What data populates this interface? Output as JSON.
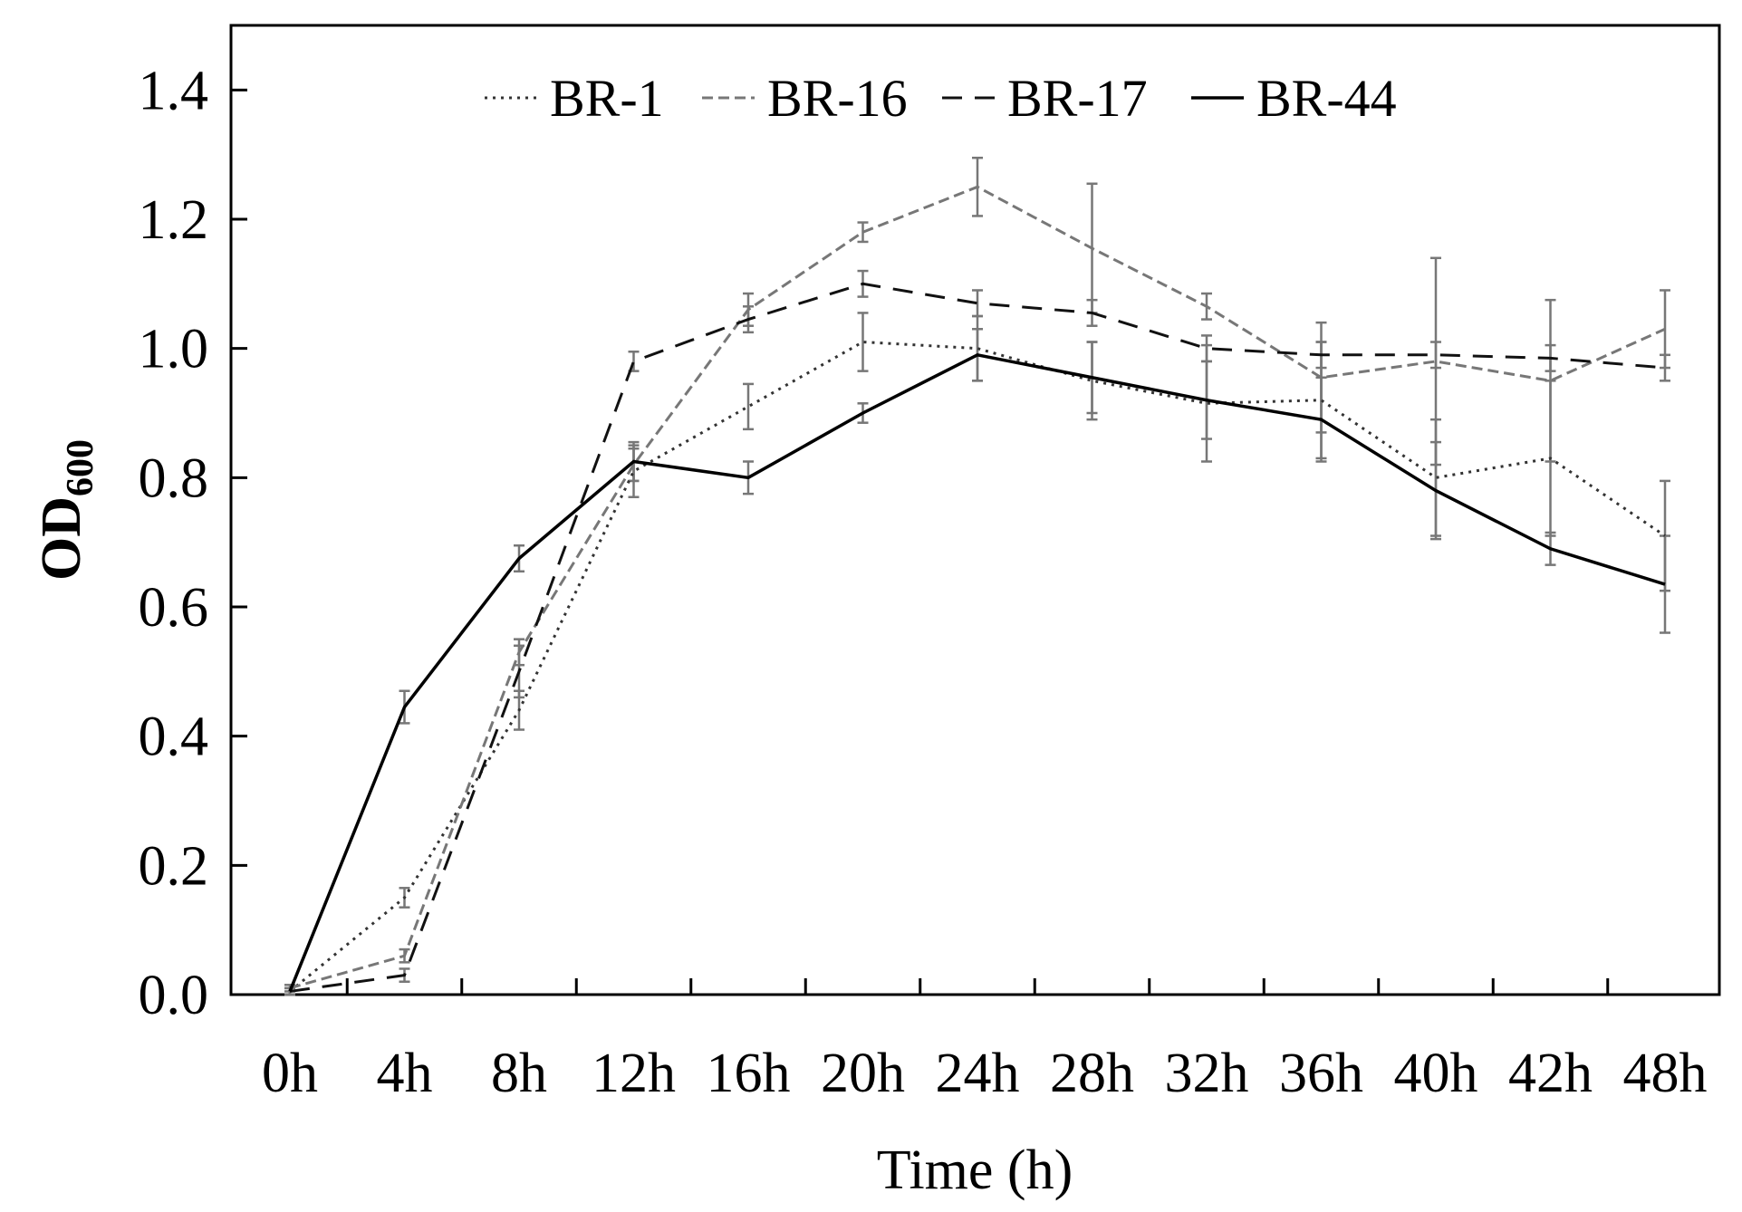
{
  "chart_data": {
    "type": "line",
    "categories": [
      "0h",
      "4h",
      "8h",
      "12h",
      "16h",
      "20h",
      "24h",
      "28h",
      "32h",
      "36h",
      "40h",
      "42h",
      "48h"
    ],
    "xlabel": "Time (h)",
    "ylabel": "OD",
    "ylabel_subscript": "600",
    "ylim": [
      0,
      1.5
    ],
    "yticks": [
      "0.0",
      "0.2",
      "0.4",
      "0.6",
      "0.8",
      "1.0",
      "1.2",
      "1.4"
    ],
    "legend_position": "top",
    "grid": false,
    "error_bar_color": "#777777",
    "series": [
      {
        "name": "BR-1",
        "style": "dotted",
        "color": "#333333",
        "values": [
          0.005,
          0.15,
          0.44,
          0.81,
          0.91,
          1.01,
          1.0,
          0.95,
          0.915,
          0.92,
          0.8,
          0.83,
          0.71
        ],
        "errors": [
          0.005,
          0.015,
          0.03,
          0.04,
          0.035,
          0.045,
          0.05,
          0.06,
          0.09,
          0.09,
          0.09,
          0.12,
          0.085
        ]
      },
      {
        "name": "BR-16",
        "style": "dashed-fine",
        "color": "#777777",
        "values": [
          0.01,
          0.06,
          0.53,
          0.82,
          1.06,
          1.18,
          1.25,
          1.155,
          1.065,
          0.955,
          0.98,
          0.95,
          1.03
        ],
        "errors": [
          0.005,
          0.01,
          0.02,
          0.025,
          0.025,
          0.015,
          0.045,
          0.1,
          0.02,
          0.085,
          0.16,
          0.125,
          0.06
        ]
      },
      {
        "name": "BR-17",
        "style": "dashed",
        "color": "#111111",
        "values": [
          0.005,
          0.03,
          0.5,
          0.98,
          1.045,
          1.1,
          1.07,
          1.055,
          1.0,
          0.99,
          0.99,
          0.985,
          0.97
        ],
        "errors": [
          0.005,
          0.01,
          0.04,
          0.015,
          0.02,
          0.02,
          0.02,
          0.02,
          0.02,
          0.02,
          0.02,
          0.02,
          0.02
        ]
      },
      {
        "name": "BR-44",
        "style": "solid",
        "color": "#000000",
        "values": [
          0.005,
          0.445,
          0.675,
          0.825,
          0.8,
          0.9,
          0.99,
          0.955,
          0.92,
          0.89,
          0.78,
          0.69,
          0.635
        ],
        "errors": [
          0.005,
          0.025,
          0.02,
          0.03,
          0.025,
          0.015,
          0.04,
          0.055,
          0.06,
          0.065,
          0.075,
          0.025,
          0.075
        ]
      }
    ]
  }
}
